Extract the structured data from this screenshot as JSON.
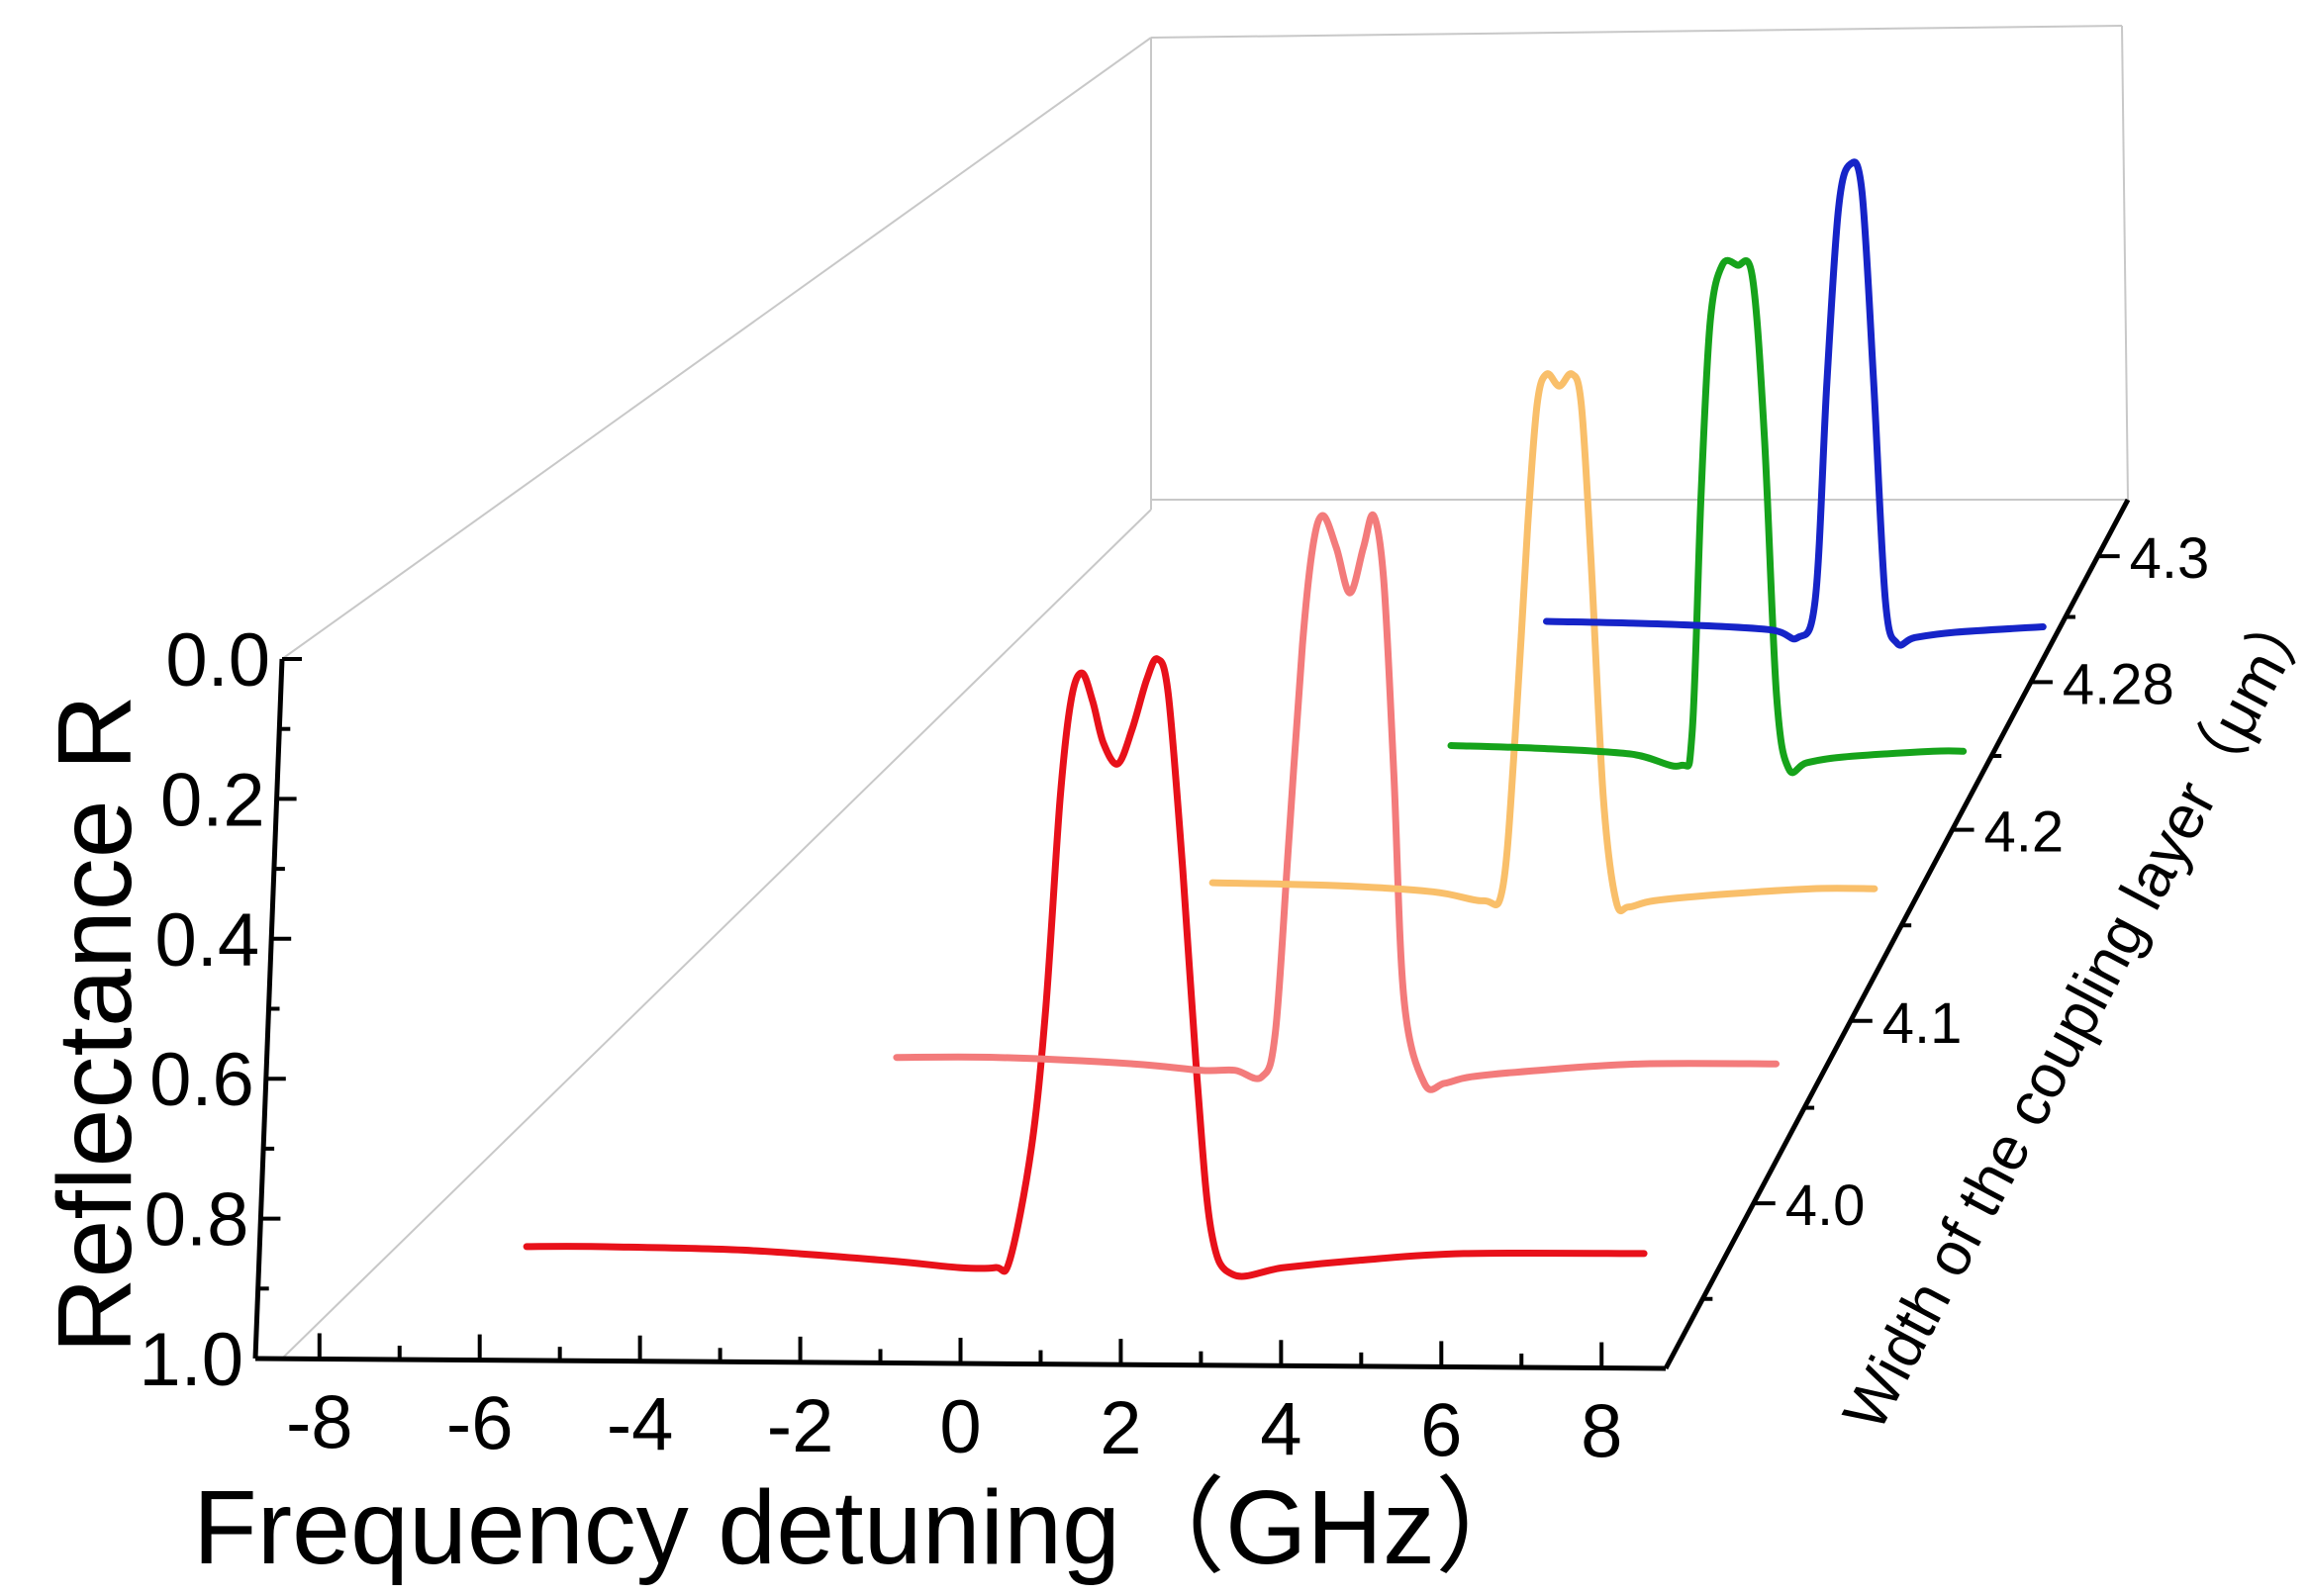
{
  "chart_data": {
    "type": "line",
    "subtype": "3d-waterfall",
    "title": "",
    "xlabel": "Frequency detuning（GHz）",
    "ylabel": "Reflectance R",
    "zlabel": "Width of the coupling layer（μm）",
    "x_ticks": [
      "-8",
      "-6",
      "-4",
      "-2",
      "0",
      "2",
      "4",
      "6",
      "8"
    ],
    "y_ticks": [
      "0.0",
      "0.2",
      "0.4",
      "0.6",
      "0.8",
      "1.0"
    ],
    "z_ticks": [
      "4.0",
      "4.1",
      "4.2",
      "4.28",
      "4.3"
    ],
    "xlim": [
      -8.8,
      8.8
    ],
    "ylim": [
      0.0,
      1.0
    ],
    "y_inverted": true,
    "grid": false,
    "series": [
      {
        "name": "4.0",
        "color": "#e8111a",
        "x": [
          -7.0,
          -6.0,
          -4.0,
          -2.0,
          -1.0,
          -0.5,
          -0.3,
          0.0,
          0.2,
          0.4,
          0.55,
          0.7,
          0.85,
          1.0,
          1.2,
          1.4,
          1.6,
          1.75,
          1.9,
          2.1,
          2.3,
          2.5,
          2.8,
          3.5,
          4.5,
          6.0,
          8.5
        ],
        "y": [
          0.84,
          0.84,
          0.845,
          0.86,
          0.87,
          0.87,
          0.86,
          0.7,
          0.5,
          0.2,
          0.06,
          0.02,
          0.06,
          0.12,
          0.15,
          0.1,
          0.03,
          0.0,
          0.05,
          0.3,
          0.6,
          0.82,
          0.88,
          0.87,
          0.86,
          0.85,
          0.85
        ]
      },
      {
        "name": "4.1",
        "color": "#f37b7b",
        "x": [
          -4.5,
          -3.0,
          -1.0,
          0.0,
          0.5,
          0.9,
          1.1,
          1.3,
          1.5,
          1.65,
          1.8,
          2.0,
          2.2,
          2.4,
          2.55,
          2.7,
          2.85,
          3.0,
          3.3,
          3.6,
          4.0,
          5.0,
          6.5,
          8.5
        ],
        "y": [
          0.84,
          0.84,
          0.85,
          0.86,
          0.86,
          0.87,
          0.8,
          0.5,
          0.2,
          0.05,
          0.0,
          0.05,
          0.12,
          0.05,
          0.0,
          0.1,
          0.4,
          0.75,
          0.88,
          0.88,
          0.87,
          0.86,
          0.85,
          0.85
        ]
      },
      {
        "name": "4.2",
        "color": "#f9bf6a",
        "x": [
          -2.0,
          0.0,
          1.5,
          2.3,
          2.6,
          2.8,
          3.0,
          3.15,
          3.3,
          3.5,
          3.7,
          3.85,
          4.0,
          4.2,
          4.4,
          4.6,
          5.0,
          6.0,
          7.5,
          8.5
        ],
        "y": [
          0.84,
          0.845,
          0.855,
          0.87,
          0.85,
          0.6,
          0.25,
          0.05,
          0.0,
          0.02,
          0.0,
          0.05,
          0.3,
          0.7,
          0.87,
          0.88,
          0.87,
          0.86,
          0.85,
          0.85
        ]
      },
      {
        "name": "4.28",
        "color": "#16a31b",
        "x": [
          0.0,
          1.5,
          3.0,
          3.8,
          4.0,
          4.15,
          4.3,
          4.5,
          4.75,
          5.0,
          5.2,
          5.4,
          5.6,
          5.9,
          6.5,
          8.0,
          8.5
        ],
        "y": [
          0.84,
          0.845,
          0.855,
          0.875,
          0.82,
          0.4,
          0.1,
          0.0,
          0.0,
          0.02,
          0.3,
          0.75,
          0.88,
          0.87,
          0.86,
          0.85,
          0.85
        ]
      },
      {
        "name": "4.3",
        "color": "#1624c8",
        "x": [
          0.0,
          2.0,
          3.8,
          4.3,
          4.6,
          4.8,
          5.0,
          5.2,
          5.4,
          5.6,
          5.8,
          6.0,
          6.3,
          7.0,
          8.5
        ],
        "y": [
          0.84,
          0.845,
          0.855,
          0.87,
          0.8,
          0.4,
          0.08,
          0.0,
          0.05,
          0.4,
          0.8,
          0.88,
          0.87,
          0.86,
          0.85
        ]
      }
    ]
  }
}
